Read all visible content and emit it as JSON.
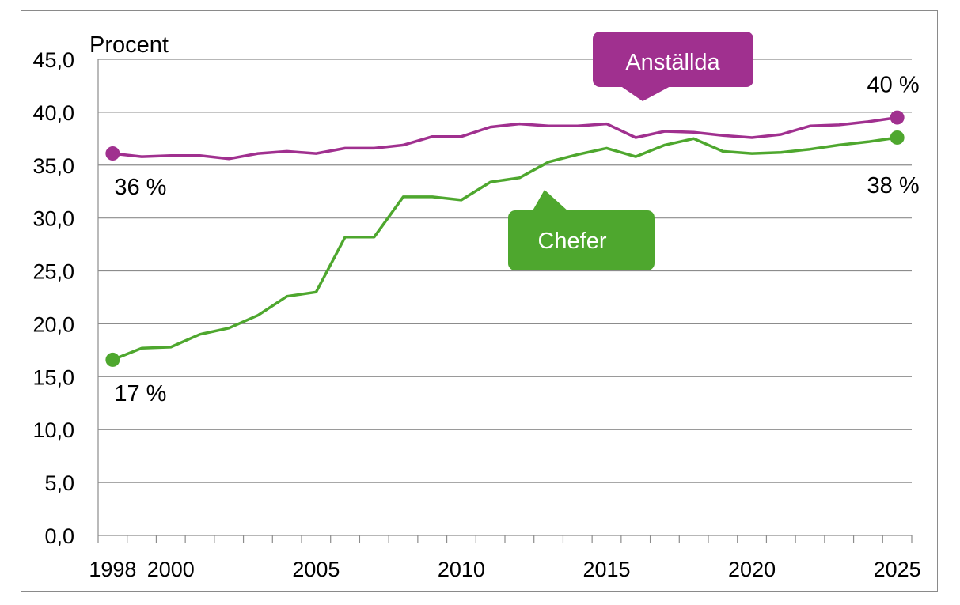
{
  "chart_data": {
    "type": "line",
    "ylabel": "Procent",
    "ylim": [
      0,
      45
    ],
    "yticks": [
      "0,0",
      "5,0",
      "10,0",
      "15,0",
      "20,0",
      "25,0",
      "30,0",
      "35,0",
      "40,0",
      "45,0"
    ],
    "xlim": [
      1998,
      2025
    ],
    "xticks": [
      "1998",
      "2000",
      "2005",
      "2010",
      "2015",
      "2020",
      "2025"
    ],
    "grid": true,
    "x": [
      1998,
      1999,
      2000,
      2001,
      2002,
      2003,
      2004,
      2005,
      2006,
      2007,
      2008,
      2009,
      2010,
      2011,
      2012,
      2013,
      2014,
      2015,
      2016,
      2017,
      2018,
      2019,
      2020,
      2021,
      2022,
      2023,
      2024,
      2025
    ],
    "series": [
      {
        "name": "Anställda",
        "color": "#a0308f",
        "values": [
          36.1,
          35.8,
          35.9,
          35.9,
          35.6,
          36.1,
          36.3,
          36.1,
          36.6,
          36.6,
          36.9,
          37.7,
          37.7,
          38.6,
          38.9,
          38.7,
          38.7,
          38.9,
          37.6,
          38.2,
          38.1,
          37.8,
          37.6,
          37.9,
          38.7,
          38.8,
          39.1,
          39.5
        ],
        "start_label": "36 %",
        "end_label": "40 %"
      },
      {
        "name": "Chefer",
        "color": "#4ea72e",
        "values": [
          16.6,
          17.7,
          17.8,
          19.0,
          19.6,
          20.8,
          22.6,
          23.0,
          28.2,
          28.2,
          32.0,
          32.0,
          31.7,
          33.4,
          33.8,
          35.3,
          36.0,
          36.6,
          35.8,
          36.9,
          37.5,
          36.3,
          36.1,
          36.2,
          36.5,
          36.9,
          37.2,
          37.6
        ],
        "start_label": "17 %",
        "end_label": "38 %"
      }
    ]
  }
}
